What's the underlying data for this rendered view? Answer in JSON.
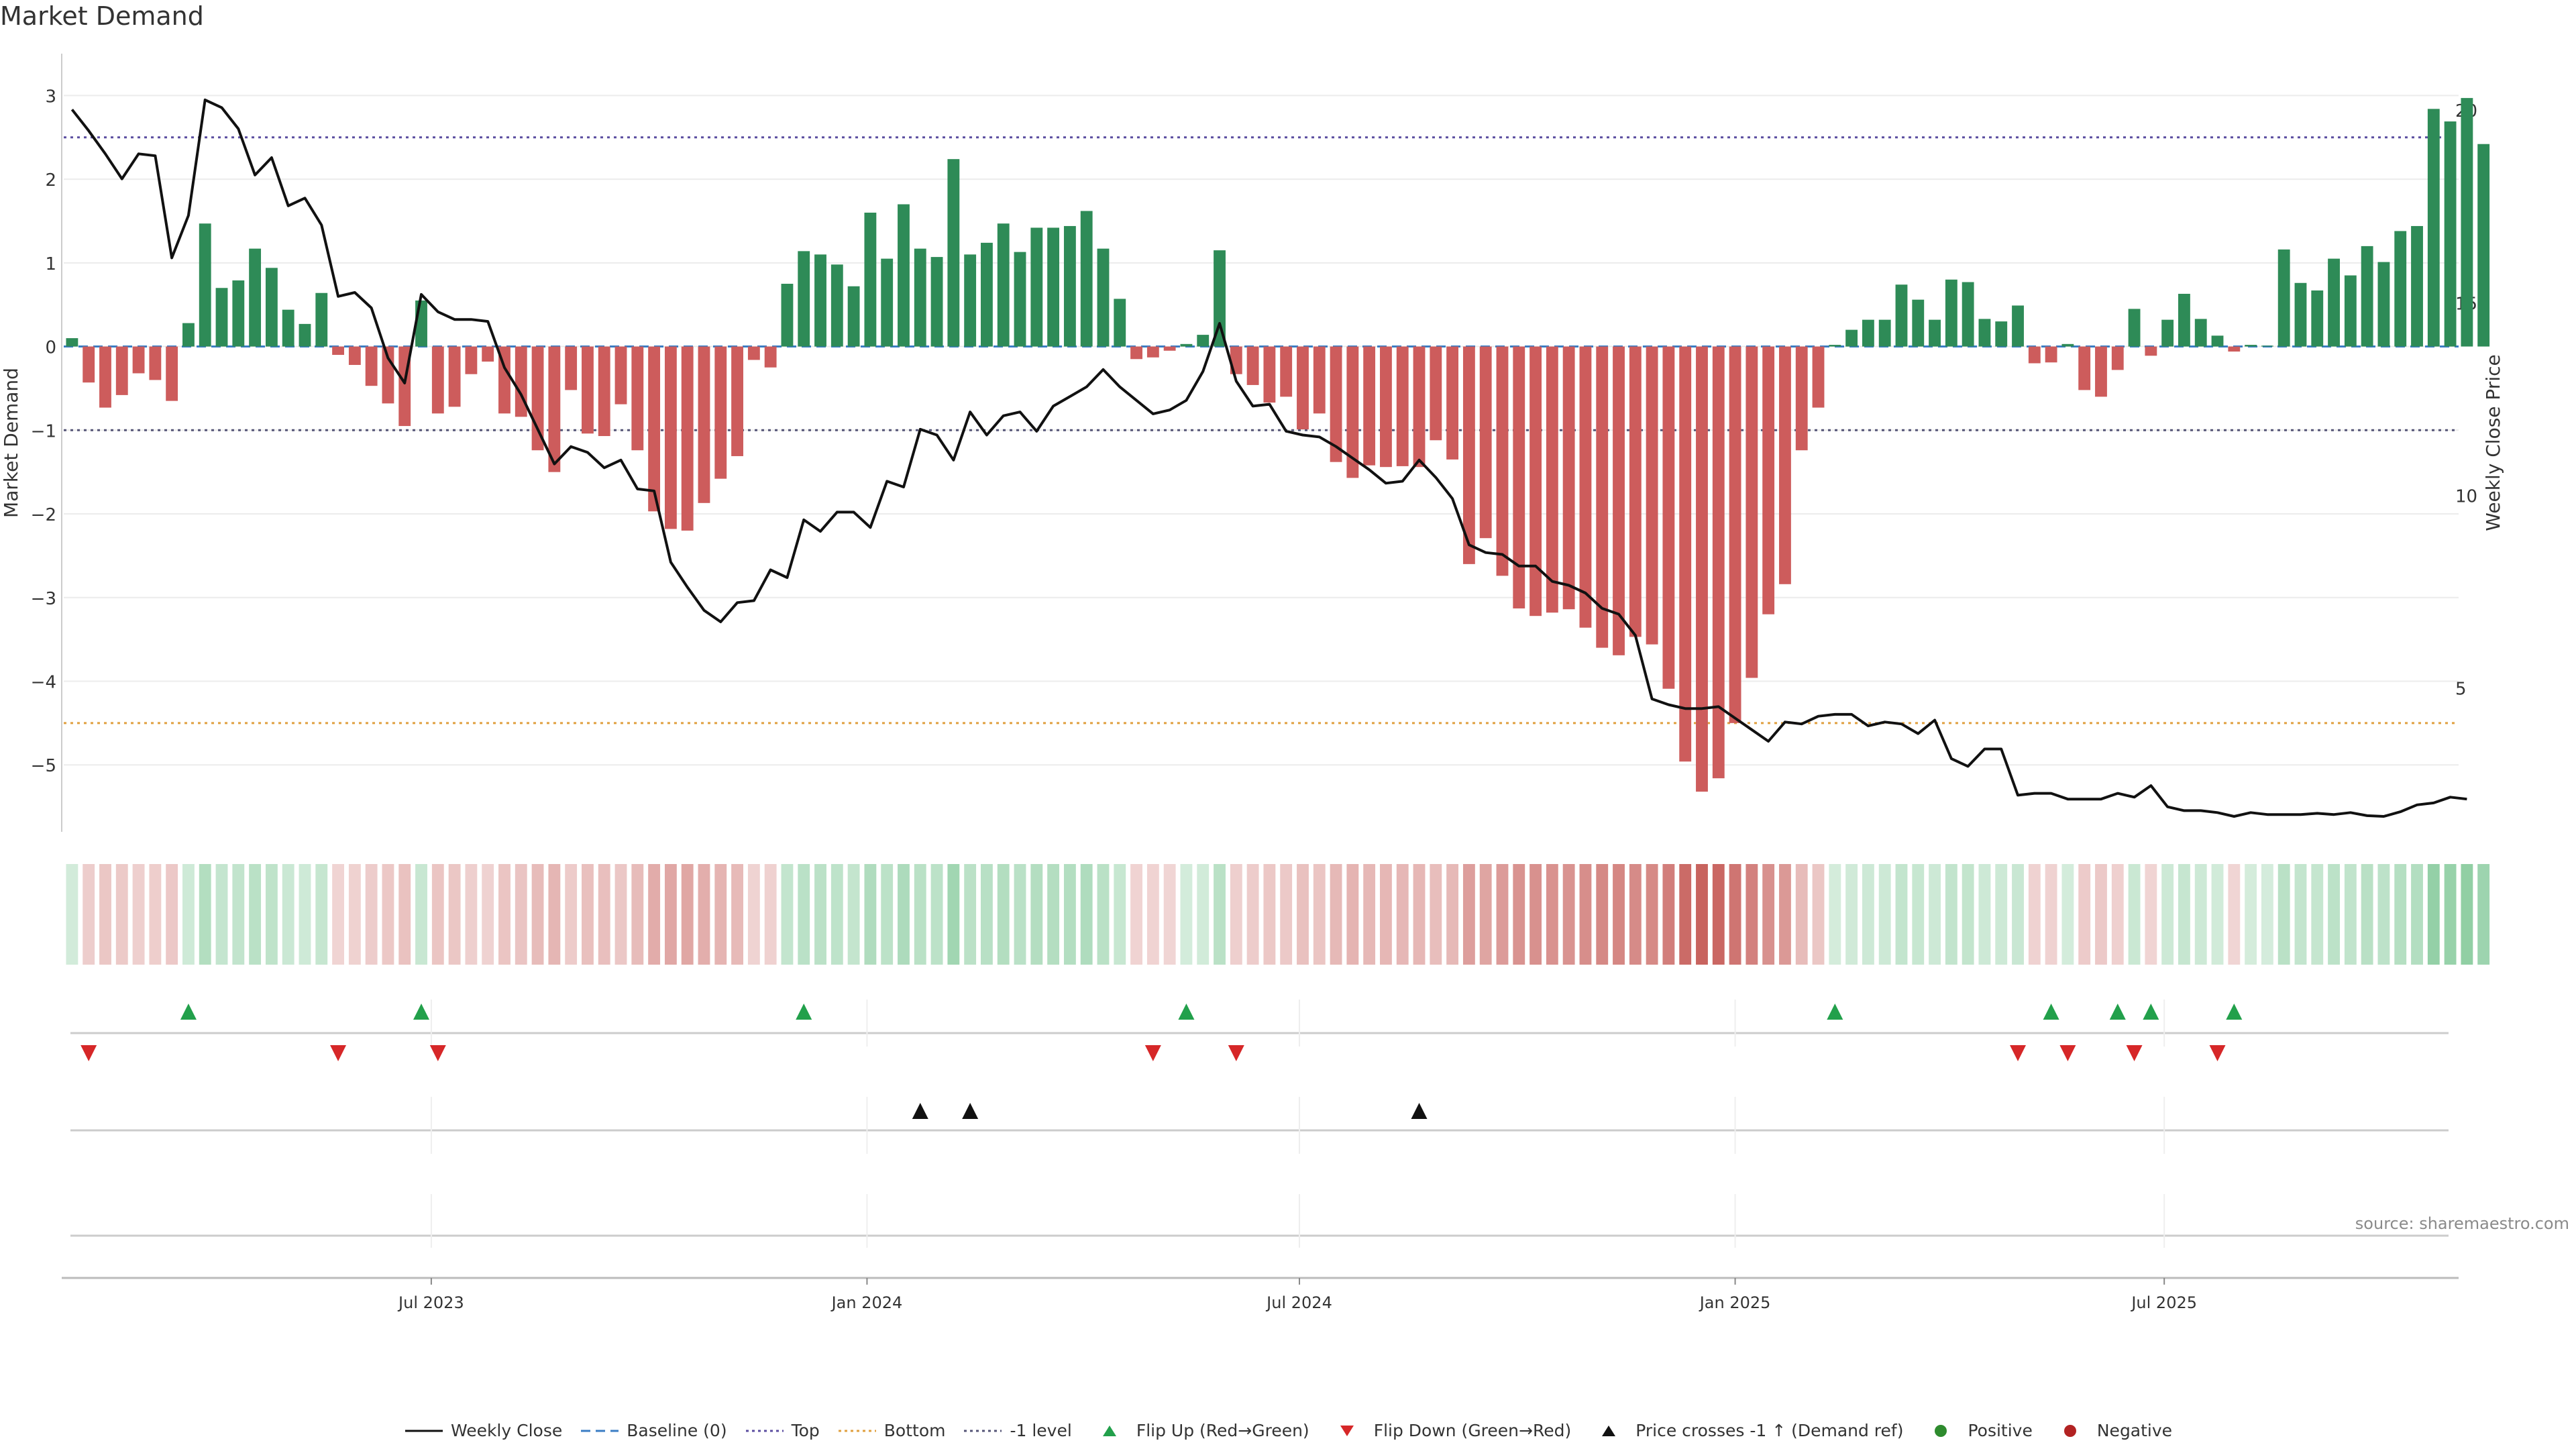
{
  "title": "Market Demand",
  "source": "source: sharemaestro.com",
  "colors": {
    "positive": "#2e8b57",
    "negative": "#cd5c5c",
    "price": "#111111",
    "top": "#5b4ea0",
    "bottom": "#e0a040",
    "minus1": "#555577",
    "baseline": "#3a7dc4",
    "flip_up": "#22a04b",
    "flip_down": "#d62728",
    "cross": "#111111"
  },
  "legend": [
    {
      "key": "price",
      "label": "Weekly Close"
    },
    {
      "key": "baseline",
      "label": "Baseline (0)"
    },
    {
      "key": "top",
      "label": "Top"
    },
    {
      "key": "bottom",
      "label": "Bottom"
    },
    {
      "key": "minus1",
      "label": "-1 level"
    },
    {
      "key": "flip_up",
      "label": "Flip Up (Red→Green)"
    },
    {
      "key": "flip_down",
      "label": "Flip Down (Green→Red)"
    },
    {
      "key": "cross",
      "label": "Price crosses -1 ↑ (Demand ref)"
    },
    {
      "key": "positive_dot",
      "label": "Positive"
    },
    {
      "key": "negative_dot",
      "label": "Negative"
    }
  ],
  "chart_data": {
    "type": "bar",
    "title": "Market Demand",
    "ylabel": "Market Demand",
    "y2label": "Weekly Close Price",
    "ylim": [
      -5.8,
      3.5
    ],
    "y2lim": [
      1.3,
      21.5
    ],
    "yticks": [
      3,
      2,
      1,
      0,
      -1,
      -2,
      -3,
      -4,
      -5
    ],
    "ytick_labels": [
      "3",
      "2",
      "1",
      "0",
      "−1",
      "−2",
      "−3",
      "−4",
      "−5"
    ],
    "y2ticks": [
      20,
      15,
      10,
      5
    ],
    "y2tick_labels": [
      "20",
      "15",
      "10",
      "5"
    ],
    "x_domain": [
      -0.5,
      143.5
    ],
    "xticks": [
      {
        "label": "Jul 2023",
        "index": 21.6
      },
      {
        "label": "Jan 2024",
        "index": 47.8
      },
      {
        "label": "Jul 2024",
        "index": 73.8
      },
      {
        "label": "Jan 2025",
        "index": 100.0
      },
      {
        "label": "Jul 2025",
        "index": 125.8
      }
    ],
    "levels": {
      "top": 2.5,
      "bottom": -4.5,
      "minus1": -1,
      "baseline": 0
    },
    "demand": [
      0.1,
      -0.43,
      -0.73,
      -0.58,
      -0.32,
      -0.4,
      -0.65,
      0.28,
      1.47,
      0.7,
      0.79,
      1.17,
      0.94,
      0.44,
      0.27,
      0.64,
      -0.1,
      -0.22,
      -0.47,
      -0.68,
      -0.95,
      0.55,
      -0.8,
      -0.72,
      -0.33,
      -0.18,
      -0.8,
      -0.84,
      -1.24,
      -1.5,
      -0.52,
      -1.04,
      -1.07,
      -0.69,
      -1.24,
      -1.97,
      -2.18,
      -2.2,
      -1.87,
      -1.58,
      -1.31,
      -0.16,
      -0.25,
      0.75,
      1.14,
      1.1,
      0.98,
      0.72,
      1.6,
      1.05,
      1.7,
      1.17,
      1.07,
      2.24,
      1.1,
      1.24,
      1.47,
      1.13,
      1.42,
      1.42,
      1.44,
      1.62,
      1.17,
      0.57,
      -0.15,
      -0.13,
      -0.05,
      0.03,
      0.14,
      1.15,
      -0.33,
      -0.46,
      -0.67,
      -0.6,
      -0.99,
      -0.8,
      -1.38,
      -1.57,
      -1.42,
      -1.44,
      -1.43,
      -1.44,
      -1.12,
      -1.35,
      -2.6,
      -2.29,
      -2.74,
      -3.13,
      -3.22,
      -3.18,
      -3.14,
      -3.36,
      -3.6,
      -3.69,
      -3.47,
      -3.56,
      -4.09,
      -4.96,
      -5.32,
      -5.16,
      -4.5,
      -3.96,
      -3.2,
      -2.84,
      -1.24,
      -0.73,
      0.02,
      0.2,
      0.32,
      0.32,
      0.74,
      0.56,
      0.32,
      0.8,
      0.77,
      0.33,
      0.3,
      0.49,
      -0.2,
      -0.19,
      0.03,
      -0.52,
      -0.6,
      -0.28,
      0.45,
      -0.11,
      0.32,
      0.63,
      0.33,
      0.13,
      -0.06,
      0.02,
      0.01,
      1.16,
      0.76,
      0.67,
      1.05,
      0.85,
      1.2,
      1.01,
      1.38,
      1.44,
      2.84,
      2.69,
      2.97,
      2.42
    ],
    "price": [
      20.05,
      19.5,
      18.9,
      18.25,
      18.9,
      18.85,
      16.2,
      17.3,
      20.3,
      20.1,
      19.55,
      18.35,
      18.8,
      17.55,
      17.75,
      17.05,
      15.2,
      15.3,
      14.9,
      13.6,
      12.95,
      15.25,
      14.8,
      14.6,
      14.6,
      14.55,
      13.35,
      12.65,
      11.75,
      10.85,
      11.3,
      11.15,
      10.75,
      10.95,
      10.2,
      10.15,
      8.3,
      7.65,
      7.05,
      6.75,
      7.25,
      7.3,
      8.1,
      7.9,
      9.4,
      9.1,
      9.6,
      9.6,
      9.2,
      10.4,
      10.25,
      11.75,
      11.6,
      10.95,
      12.2,
      11.6,
      12.1,
      12.2,
      11.7,
      12.35,
      12.6,
      12.85,
      13.3,
      12.85,
      12.5,
      12.15,
      12.25,
      12.5,
      13.25,
      14.5,
      13.0,
      12.35,
      12.4,
      11.7,
      11.6,
      11.55,
      11.3,
      11.0,
      10.7,
      10.35,
      10.4,
      10.95,
      10.5,
      9.95,
      8.75,
      8.55,
      8.5,
      8.2,
      8.2,
      7.8,
      7.7,
      7.5,
      7.1,
      6.95,
      6.4,
      4.75,
      4.6,
      4.5,
      4.5,
      4.55,
      4.25,
      3.95,
      3.65,
      4.15,
      4.1,
      4.3,
      4.35,
      4.35,
      4.05,
      4.15,
      4.1,
      3.85,
      4.2,
      3.2,
      3.0,
      3.45,
      3.45,
      2.25,
      2.3,
      2.3,
      2.15,
      2.15,
      2.15,
      2.3,
      2.2,
      2.5,
      1.95,
      1.85,
      1.85,
      1.8,
      1.7,
      1.8,
      1.75,
      1.75,
      1.75,
      1.78,
      1.75,
      1.8,
      1.72,
      1.7,
      1.82,
      2.0,
      2.05,
      2.2,
      2.15
    ],
    "flip_up": [
      7,
      21,
      44,
      67,
      106,
      119,
      123,
      125,
      130
    ],
    "flip_down": [
      1,
      16,
      22,
      65,
      70,
      117,
      120,
      124,
      129
    ],
    "price_cross_up": [
      51,
      54,
      81
    ]
  }
}
